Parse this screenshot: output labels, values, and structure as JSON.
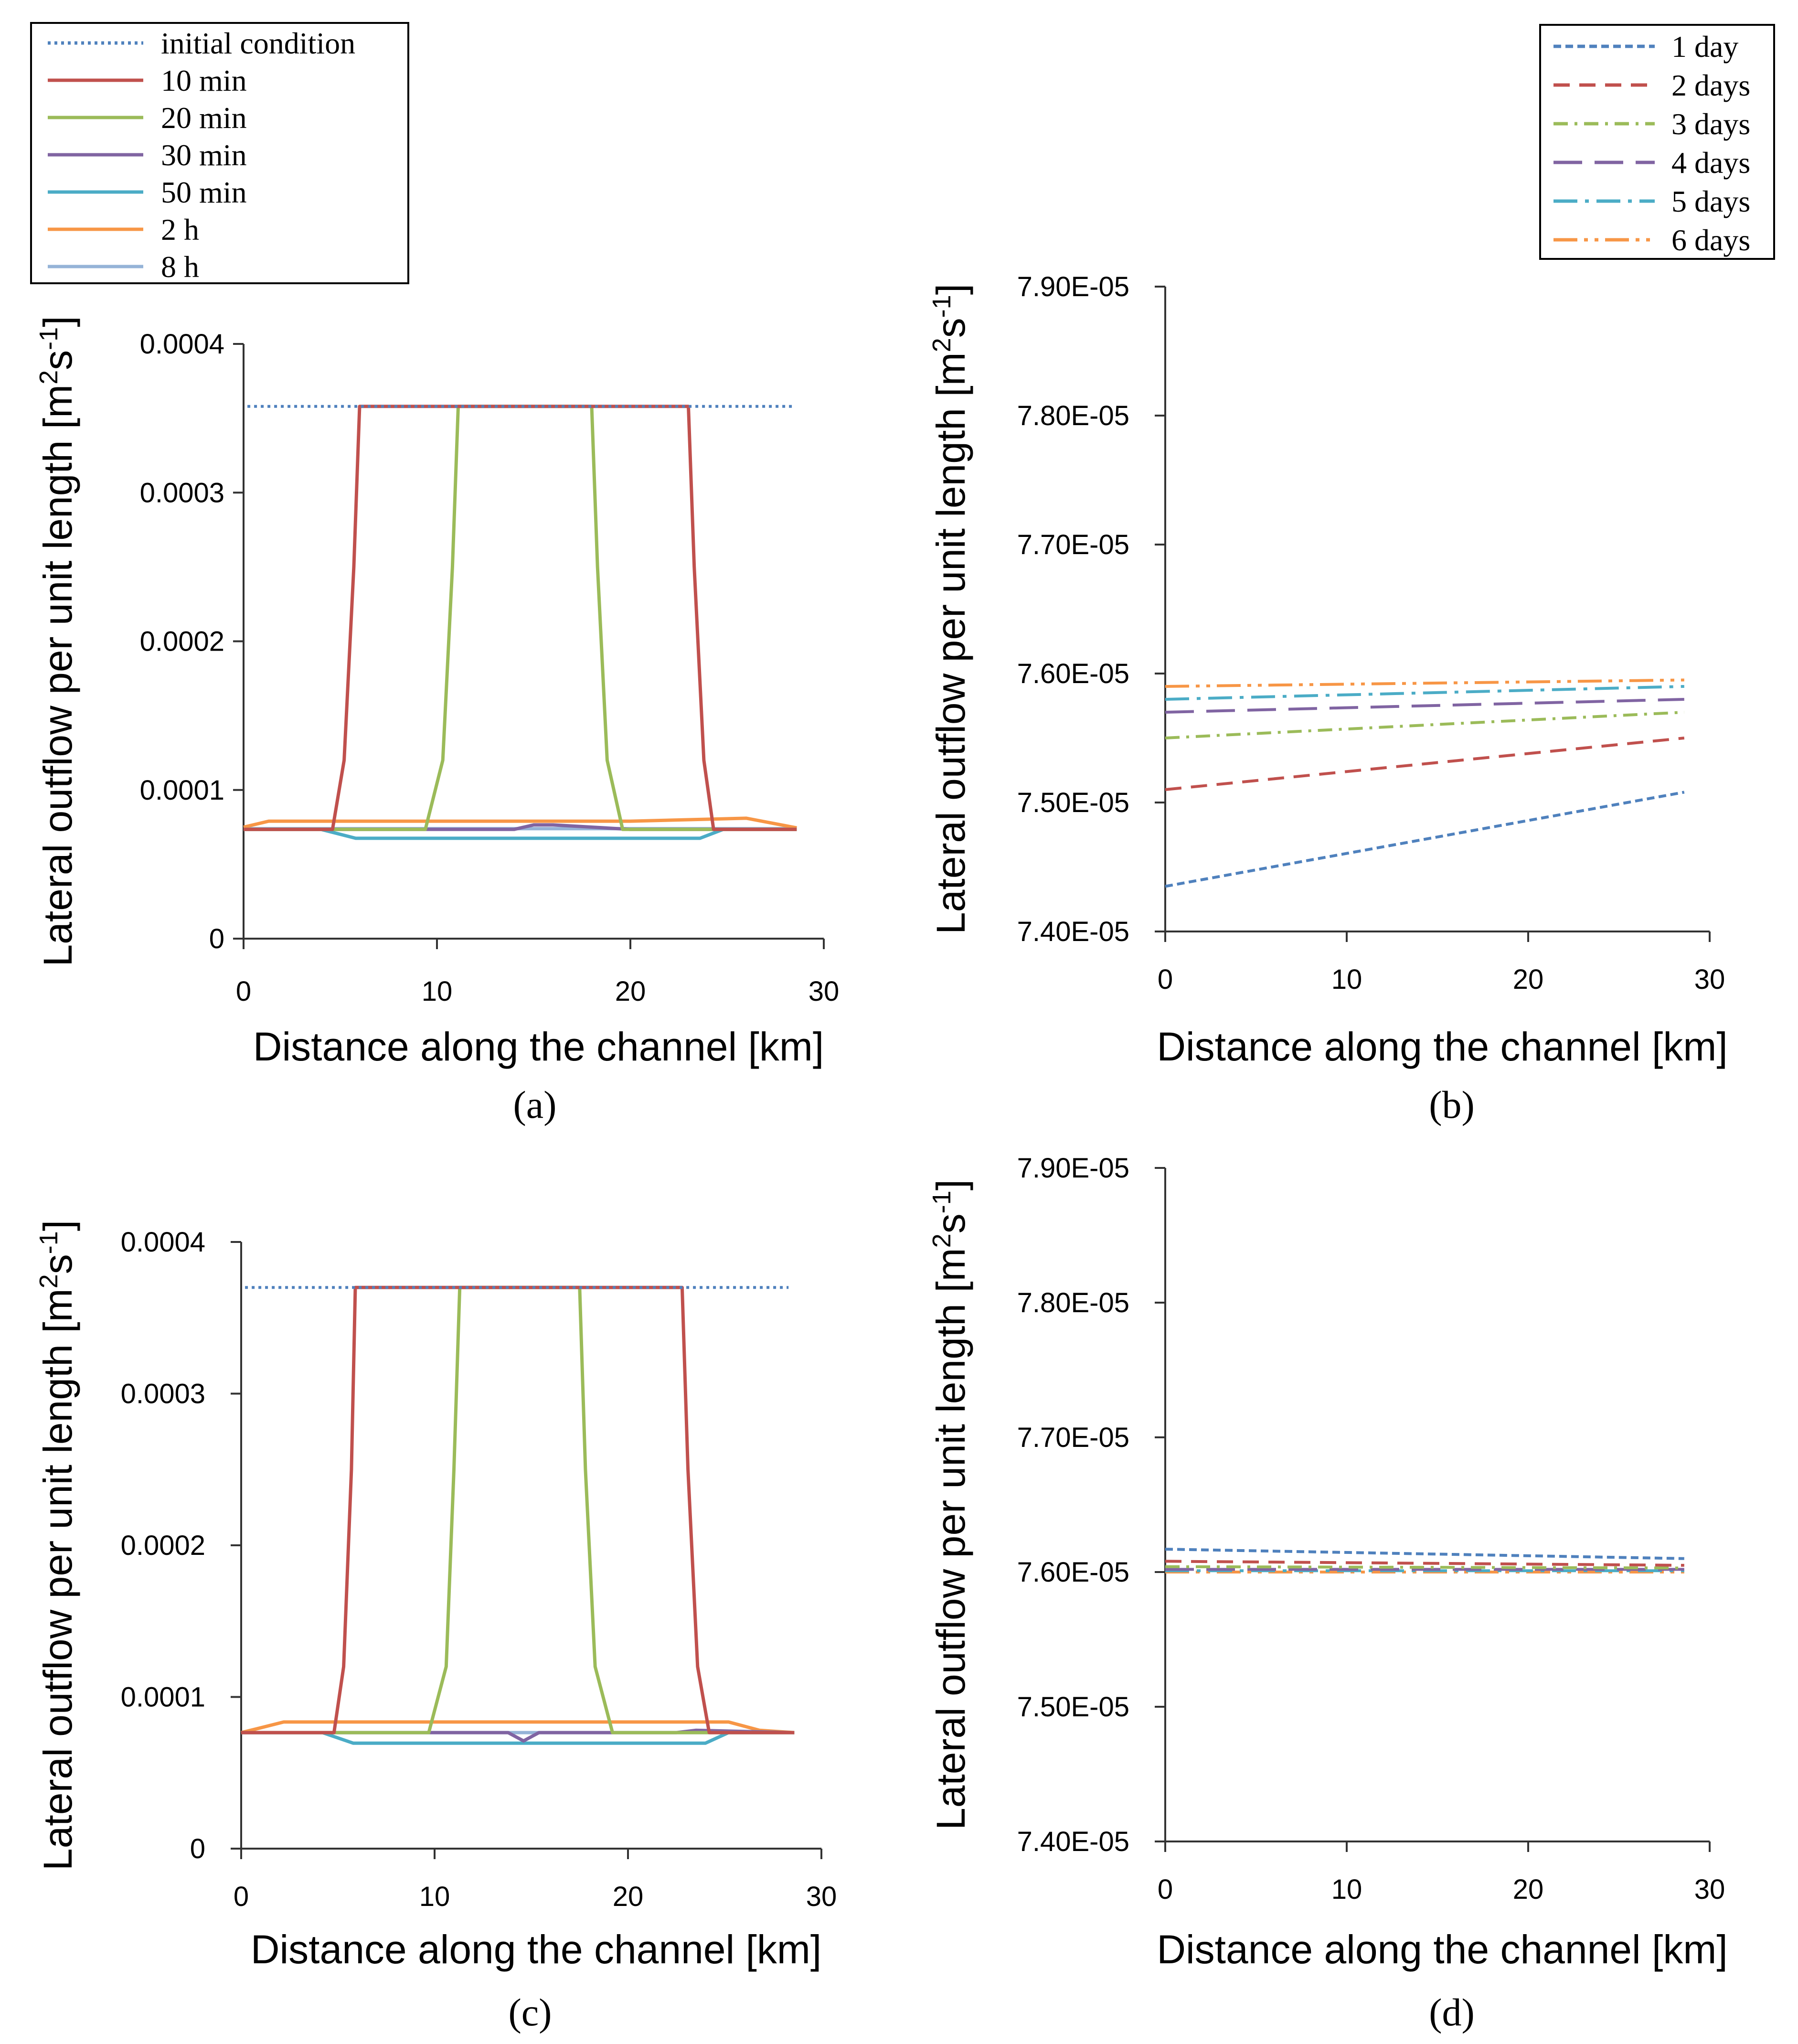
{
  "chart_data": [
    {
      "id": "a",
      "type": "line",
      "caption": "(a)",
      "xlabel": "Distance along the channel [km]",
      "ylabel": "Lateral outflow per unit length [m2s-1]",
      "xlim": [
        0,
        30
      ],
      "ylim": [
        0,
        0.0004
      ],
      "xticks": [
        0,
        10,
        20,
        30
      ],
      "yticks": [
        0,
        0.0001,
        0.0002,
        0.0003,
        0.0004
      ],
      "ytick_labels": [
        "0",
        "0.0001",
        "0.0002",
        "0.0003",
        "0.0004"
      ],
      "series": [
        {
          "name": "initial condition",
          "color": "#4f81bd",
          "dash": "dotted",
          "x": [
            0.2,
            28.4
          ],
          "y": [
            0.000358,
            0.000358
          ]
        },
        {
          "name": "10 min",
          "color": "#c0504d",
          "dash": "solid",
          "x": [
            0,
            4.6,
            5.2,
            5.7,
            6.0,
            23.0,
            23.3,
            23.8,
            24.3,
            28.6
          ],
          "y": [
            7.35e-05,
            7.35e-05,
            0.00012,
            0.00025,
            0.000358,
            0.000358,
            0.00025,
            0.00012,
            7.35e-05,
            7.35e-05
          ]
        },
        {
          "name": "20 min",
          "color": "#9bbb59",
          "dash": "solid",
          "x": [
            0,
            9.4,
            10.3,
            10.8,
            11.1,
            18.0,
            18.3,
            18.8,
            19.6,
            28.6
          ],
          "y": [
            7.35e-05,
            7.35e-05,
            0.00012,
            0.00025,
            0.000358,
            0.000358,
            0.00025,
            0.00012,
            7.35e-05,
            7.35e-05
          ]
        },
        {
          "name": "30 min",
          "color": "#8064a2",
          "dash": "solid",
          "x": [
            0,
            14.0,
            15.0,
            16.0,
            20.0,
            28.6
          ],
          "y": [
            7.35e-05,
            7.35e-05,
            7.65e-05,
            7.65e-05,
            7.35e-05,
            7.35e-05
          ]
        },
        {
          "name": "50 min",
          "color": "#4bacc6",
          "dash": "solid",
          "x": [
            0,
            4.0,
            5.8,
            23.6,
            24.8,
            28.6
          ],
          "y": [
            7.35e-05,
            7.35e-05,
            6.75e-05,
            6.75e-05,
            7.35e-05,
            7.35e-05
          ]
        },
        {
          "name": "2 h",
          "color": "#f79646",
          "dash": "solid",
          "x": [
            0,
            1.3,
            20.0,
            26.0,
            27.6,
            28.6
          ],
          "y": [
            7.5e-05,
            7.9e-05,
            7.9e-05,
            8.1e-05,
            7.7e-05,
            7.45e-05
          ]
        },
        {
          "name": "8 h",
          "color": "#95b3d7",
          "dash": "solid",
          "x": [
            0,
            28.6
          ],
          "y": [
            7.4e-05,
            7.4e-05
          ]
        }
      ]
    },
    {
      "id": "b",
      "type": "line",
      "caption": "(b)",
      "xlabel": "Distance along the channel [km]",
      "ylabel": "Lateral outflow per unit length [m2s-1]",
      "xlim": [
        0,
        30
      ],
      "ylim": [
        7.4e-05,
        7.9e-05
      ],
      "xticks": [
        0,
        10,
        20,
        30
      ],
      "yticks": [
        7.4e-05,
        7.5e-05,
        7.6e-05,
        7.7e-05,
        7.8e-05,
        7.9e-05
      ],
      "ytick_labels": [
        "7.40E-05",
        "7.50E-05",
        "7.60E-05",
        "7.70E-05",
        "7.80E-05",
        "7.90E-05"
      ],
      "series": [
        {
          "name": "1 day",
          "color": "#4f81bd",
          "dash": "short",
          "x": [
            0,
            28.6
          ],
          "y": [
            7.435e-05,
            7.508e-05
          ]
        },
        {
          "name": "2 days",
          "color": "#c0504d",
          "dash": "dash",
          "x": [
            0,
            28.6
          ],
          "y": [
            7.51e-05,
            7.55e-05
          ]
        },
        {
          "name": "3 days",
          "color": "#9bbb59",
          "dash": "dashdot",
          "x": [
            0,
            28.6
          ],
          "y": [
            7.55e-05,
            7.57e-05
          ]
        },
        {
          "name": "4 days",
          "color": "#8064a2",
          "dash": "long",
          "x": [
            0,
            28.6
          ],
          "y": [
            7.57e-05,
            7.58e-05
          ]
        },
        {
          "name": "5 days",
          "color": "#4bacc6",
          "dash": "longdashdot",
          "x": [
            0,
            28.6
          ],
          "y": [
            7.58e-05,
            7.59e-05
          ]
        },
        {
          "name": "6 days",
          "color": "#f79646",
          "dash": "longdashdotdot",
          "x": [
            0,
            28.6
          ],
          "y": [
            7.59e-05,
            7.595e-05
          ]
        }
      ]
    },
    {
      "id": "c",
      "type": "line",
      "caption": "(c)",
      "xlabel": "Distance along the channel [km]",
      "ylabel": "Lateral outflow per unit length [m2s-1]",
      "xlim": [
        0,
        30
      ],
      "ylim": [
        0,
        0.0004
      ],
      "xticks": [
        0,
        10,
        20,
        30
      ],
      "yticks": [
        0,
        0.0001,
        0.0002,
        0.0003,
        0.0004
      ],
      "ytick_labels": [
        "0",
        "0.0001",
        "0.0002",
        "0.0003",
        "0.0004"
      ],
      "series": [
        {
          "name": "initial condition",
          "color": "#4f81bd",
          "dash": "dotted",
          "x": [
            0.2,
            28.3
          ],
          "y": [
            0.00037,
            0.00037
          ]
        },
        {
          "name": "10 min",
          "color": "#c0504d",
          "dash": "solid",
          "x": [
            0,
            4.8,
            5.3,
            5.7,
            5.9,
            22.8,
            23.1,
            23.6,
            24.2,
            28.6
          ],
          "y": [
            7.65e-05,
            7.65e-05,
            0.00012,
            0.00025,
            0.00037,
            0.00037,
            0.00025,
            0.00012,
            7.65e-05,
            7.65e-05
          ]
        },
        {
          "name": "20 min",
          "color": "#9bbb59",
          "dash": "solid",
          "x": [
            0,
            9.7,
            10.6,
            11.0,
            11.3,
            17.5,
            17.8,
            18.3,
            19.2,
            28.6
          ],
          "y": [
            7.65e-05,
            7.65e-05,
            0.00012,
            0.00025,
            0.00037,
            0.00037,
            0.00025,
            0.00012,
            7.65e-05,
            7.65e-05
          ]
        },
        {
          "name": "30 min",
          "color": "#8064a2",
          "dash": "solid",
          "x": [
            0,
            13.8,
            14.6,
            15.4,
            22.5,
            23.5,
            28.6
          ],
          "y": [
            7.65e-05,
            7.65e-05,
            7.1e-05,
            7.65e-05,
            7.65e-05,
            7.8e-05,
            7.65e-05
          ]
        },
        {
          "name": "50 min",
          "color": "#4bacc6",
          "dash": "solid",
          "x": [
            0,
            4.2,
            5.8,
            24.0,
            25.2,
            28.6
          ],
          "y": [
            7.65e-05,
            7.65e-05,
            6.95e-05,
            6.95e-05,
            7.65e-05,
            7.65e-05
          ]
        },
        {
          "name": "2 h",
          "color": "#f79646",
          "dash": "solid",
          "x": [
            0,
            0.8,
            2.2,
            25.2,
            26.8,
            28.6
          ],
          "y": [
            7.65e-05,
            7.9e-05,
            8.35e-05,
            8.35e-05,
            7.8e-05,
            7.65e-05
          ]
        },
        {
          "name": "8 h",
          "color": "#95b3d7",
          "dash": "solid",
          "x": [
            0,
            28.6
          ],
          "y": [
            7.65e-05,
            7.65e-05
          ]
        }
      ]
    },
    {
      "id": "d",
      "type": "line",
      "caption": "(d)",
      "xlabel": "Distance along the channel [km]",
      "ylabel": "Lateral outflow per unit length [m2s-1]",
      "xlim": [
        0,
        30
      ],
      "ylim": [
        7.4e-05,
        7.9e-05
      ],
      "xticks": [
        0,
        10,
        20,
        30
      ],
      "yticks": [
        7.4e-05,
        7.5e-05,
        7.6e-05,
        7.7e-05,
        7.8e-05,
        7.9e-05
      ],
      "ytick_labels": [
        "7.40E-05",
        "7.50E-05",
        "7.60E-05",
        "7.70E-05",
        "7.80E-05",
        "7.90E-05"
      ],
      "series": [
        {
          "name": "1 day",
          "color": "#4f81bd",
          "dash": "short",
          "x": [
            0,
            28.6
          ],
          "y": [
            7.617e-05,
            7.61e-05
          ]
        },
        {
          "name": "2 days",
          "color": "#c0504d",
          "dash": "dash",
          "x": [
            0,
            28.6
          ],
          "y": [
            7.608e-05,
            7.605e-05
          ]
        },
        {
          "name": "3 days",
          "color": "#9bbb59",
          "dash": "dashdot",
          "x": [
            0,
            28.6
          ],
          "y": [
            7.604e-05,
            7.603e-05
          ]
        },
        {
          "name": "4 days",
          "color": "#8064a2",
          "dash": "long",
          "x": [
            0,
            28.6
          ],
          "y": [
            7.602e-05,
            7.602e-05
          ]
        },
        {
          "name": "5 days",
          "color": "#4bacc6",
          "dash": "longdashdot",
          "x": [
            0,
            28.6
          ],
          "y": [
            7.601e-05,
            7.601e-05
          ]
        },
        {
          "name": "6 days",
          "color": "#f79646",
          "dash": "longdashdotdot",
          "x": [
            0,
            28.6
          ],
          "y": [
            7.6e-05,
            7.6e-05
          ]
        }
      ]
    }
  ],
  "legend_left": {
    "entries": [
      "initial condition",
      "10 min",
      "20 min",
      "30 min",
      "50 min",
      "2 h",
      "8 h"
    ]
  },
  "legend_right": {
    "entries": [
      "1 day",
      "2 days",
      "3 days",
      "4 days",
      "5 days",
      "6 days"
    ]
  },
  "ylabel_parts": {
    "main": "Lateral outflow per unit length [m",
    "sup1": "2",
    "mid": "s",
    "sup2": "-1",
    "end": "]"
  }
}
